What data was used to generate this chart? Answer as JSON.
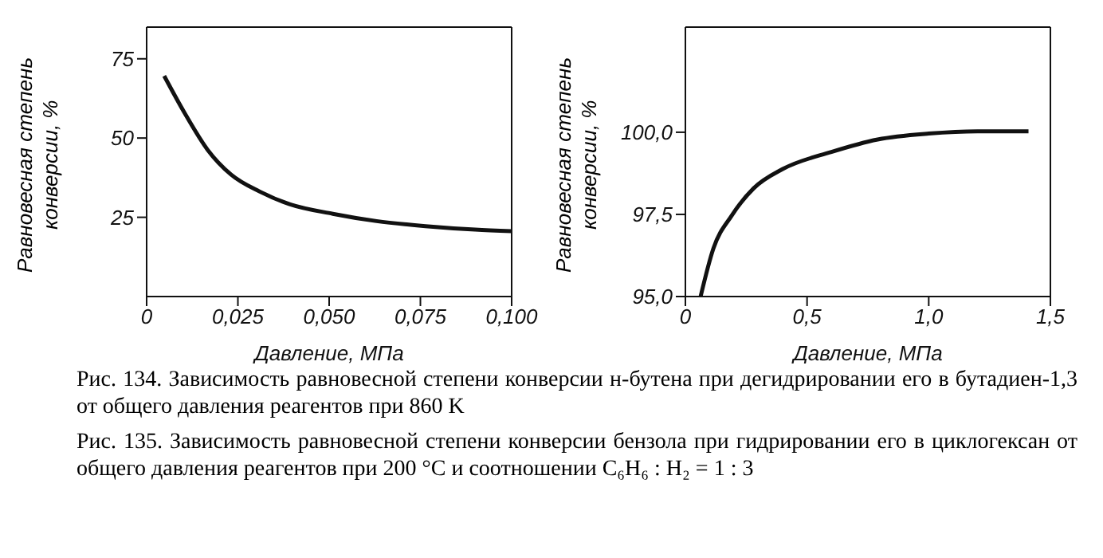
{
  "chart_data": [
    {
      "type": "line",
      "xlabel": "Давление, МПа",
      "ylabel": "Равновесная степень конверсии, %",
      "x": [
        0.0048,
        0.0104,
        0.0167,
        0.0231,
        0.031,
        0.039,
        0.051,
        0.063,
        0.0764,
        0.09,
        0.1
      ],
      "series": [
        {
          "color": "#111111",
          "values": [
            69.6,
            57.9,
            46.3,
            38.5,
            33.1,
            29.2,
            26.1,
            23.8,
            22.2,
            21.1,
            20.6
          ]
        }
      ],
      "xlim": [
        0,
        0.1
      ],
      "xticks": [
        0,
        {
          "value": 0.025,
          "label": "0,025"
        },
        {
          "value": 0.05,
          "label": "0,050"
        },
        {
          "value": 0.075,
          "label": "0,075"
        },
        {
          "value": 0.1,
          "label": "0,100"
        }
      ],
      "ylim": [
        0,
        85
      ],
      "yticks": [
        25,
        50,
        75
      ],
      "grid": false,
      "legend": false,
      "marker": "none",
      "line_style": "solid",
      "annotations": [
        "Рис. 134. Зависимость равновесной степени конверсии н-бутена при дегидрировании его в бутадиен-1,3 от общего давления реагентов при 860 K"
      ]
    },
    {
      "type": "line",
      "xlabel": "Давление, МПа",
      "ylabel": "Равновесная степень конверсии, %",
      "x": [
        0.0625,
        0.115,
        0.19,
        0.28,
        0.4,
        0.6,
        0.79,
        1.0,
        1.2,
        1.41
      ],
      "series": [
        {
          "color": "#111111",
          "values": [
            95.0,
            96.46,
            97.46,
            98.29,
            98.88,
            99.4,
            99.78,
            99.96,
            100.03,
            100.03
          ]
        }
      ],
      "xlim": [
        0,
        1.5
      ],
      "xticks": [
        0,
        {
          "value": 0.5,
          "label": "0,5"
        },
        {
          "value": 1.0,
          "label": "1,0"
        },
        {
          "value": 1.5,
          "label": "1,5"
        }
      ],
      "ylim": [
        95,
        103.2
      ],
      "yticks": [
        {
          "value": 95,
          "label": "95,0"
        },
        {
          "value": 97.5,
          "label": "97,5"
        },
        {
          "value": 100,
          "label": "100,0"
        }
      ],
      "grid": false,
      "legend": false,
      "marker": "none",
      "line_style": "solid",
      "annotations": [
        "Рис. 135. Зависимость равновесной степени конверсии бензола при гидрировании его в циклогексан от общего давления реагентов при 200 °C и соотношении C₆H₆ : H₂ = 1 : 3"
      ]
    }
  ]
}
